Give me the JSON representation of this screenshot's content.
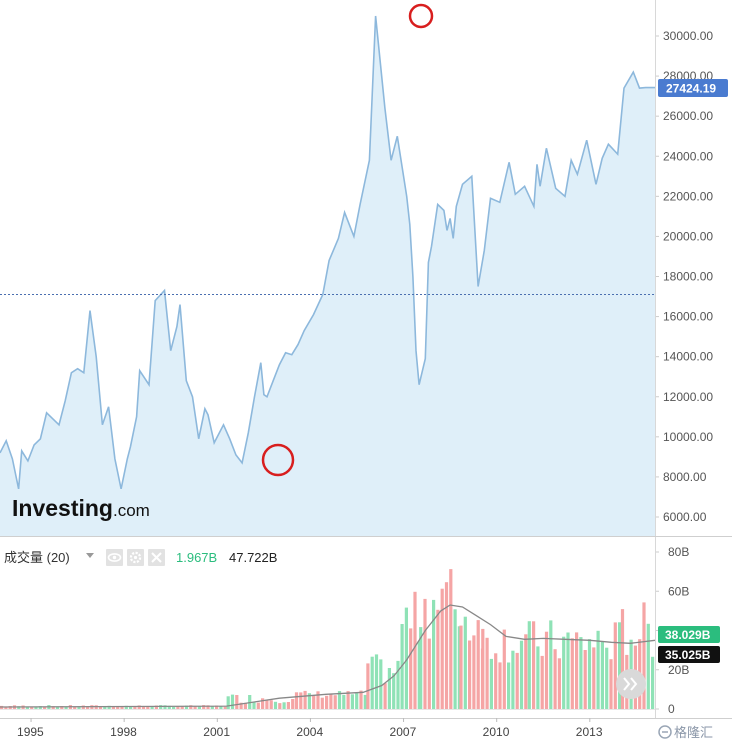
{
  "logo": {
    "brand": "Investing",
    "suffix": ".com"
  },
  "watermark": "格隆汇",
  "volume_header": {
    "indicator_label": "成交量 (20)",
    "current_volume": "1.967B",
    "average_volume": "47.722B"
  },
  "price_badge": "27424.19",
  "volume_badges": {
    "green": "38.029B",
    "black": "35.025B"
  },
  "colors": {
    "line": "#8db8dc",
    "fill": "#dfeff9",
    "up_bar": "#8fe2b6",
    "down_bar": "#f5a5a5",
    "ma_line": "#888888",
    "price_badge": "#4a7bd0",
    "vol_badge_green": "#2bbd7e",
    "vol_badge_black": "#111111",
    "circle": "#d81e1e"
  },
  "icons": [
    "dropdown-icon",
    "eye-icon",
    "gear-icon",
    "close-icon",
    "double-chevron-right-icon"
  ],
  "chart_data": [
    {
      "type": "area",
      "title": "",
      "xlabel": "",
      "ylabel": "",
      "y_tick_labels": [
        "6000.00",
        "8000.00",
        "10000.00",
        "12000.00",
        "14000.00",
        "16000.00",
        "18000.00",
        "20000.00",
        "22000.00",
        "24000.00",
        "26000.00",
        "28000.00",
        "30000.00"
      ],
      "x_tick_labels": [
        "1995",
        "1998",
        "2001",
        "2004",
        "2007",
        "2010",
        "2013"
      ],
      "ylim": [
        5000,
        32000
      ],
      "xlim": [
        1994.5,
        2015.6
      ],
      "reference_line": 17100,
      "highlighted_points": [
        "peak 2007",
        "trough 2003"
      ],
      "last_value": 27424.19,
      "series": [
        {
          "x": [
            1994.5,
            1994.7,
            1994.9,
            1995.1,
            1995.2,
            1995.4,
            1995.6,
            1995.8,
            1996.0,
            1996.2,
            1996.4,
            1996.6,
            1996.8,
            1997.0,
            1997.2,
            1997.4,
            1997.6,
            1997.8,
            1998.0,
            1998.2,
            1998.4,
            1998.6,
            1998.7,
            1998.9,
            1999.0,
            1999.3,
            1999.5,
            1999.8,
            2000.0,
            2000.2,
            2000.3,
            2000.5,
            2000.7,
            2000.9,
            2001.1,
            2001.2,
            2001.4,
            2001.7,
            2001.9,
            2002.1,
            2002.3,
            2002.5,
            2002.7,
            2002.9,
            2003.0,
            2003.1,
            2003.3,
            2003.5,
            2003.7,
            2003.9,
            2004.1,
            2004.3,
            2004.6,
            2004.9,
            2005.1,
            2005.4,
            2005.6,
            2005.9,
            2006.1,
            2006.4,
            2006.6,
            2006.9,
            2007.1,
            2007.3,
            2007.6,
            2007.7,
            2007.8,
            2007.9,
            2008.0,
            2008.2,
            2008.3,
            2008.4,
            2008.6,
            2008.8,
            2008.9,
            2009.0,
            2009.1,
            2009.2,
            2009.4,
            2009.7,
            2009.9,
            2010.1,
            2010.3,
            2010.6,
            2010.9,
            2011.1,
            2011.4,
            2011.7,
            2011.8,
            2011.9,
            2012.1,
            2012.4,
            2012.7,
            2012.9,
            2013.1,
            2013.4,
            2013.7,
            2013.9,
            2014.1,
            2014.4,
            2014.6,
            2014.9,
            2015.1,
            2015.3,
            2015.5,
            2015.6
          ],
          "values": [
            9200,
            9800,
            8900,
            7400,
            9300,
            8800,
            9600,
            9900,
            11200,
            10900,
            10600,
            11800,
            13200,
            13400,
            13200,
            16300,
            14000,
            10600,
            11500,
            8900,
            7400,
            8900,
            9500,
            11000,
            13300,
            12600,
            16800,
            17300,
            14300,
            15500,
            16600,
            12800,
            12000,
            9900,
            11400,
            11100,
            9700,
            10600,
            9900,
            9100,
            8700,
            10200,
            12000,
            13700,
            12100,
            12000,
            12800,
            13600,
            14200,
            14100,
            14600,
            15300,
            16100,
            17100,
            18800,
            19900,
            21200,
            20000,
            21600,
            23800,
            31000,
            26400,
            23800,
            25000,
            22000,
            20600,
            18000,
            14300,
            12600,
            13900,
            18700,
            19500,
            21600,
            21300,
            20300,
            20900,
            19900,
            21500,
            22600,
            23000,
            17500,
            19300,
            21900,
            21700,
            23700,
            22100,
            22500,
            21500,
            23600,
            22500,
            24400,
            22400,
            22000,
            23800,
            23100,
            24800,
            22600,
            23900,
            24600,
            24100,
            27400,
            28200,
            27400,
            27424.19,
            27424.19,
            27424.19
          ]
        }
      ]
    },
    {
      "type": "bar",
      "title": "成交量 (20)",
      "xlabel": "",
      "ylabel": "",
      "y_tick_labels": [
        "0",
        "20B",
        "40B",
        "60B",
        "80B"
      ],
      "ylim": [
        0,
        82
      ],
      "xlim": [
        1994.5,
        2015.6
      ],
      "bar_groups": [
        {
          "x_start": 1994.5,
          "x_end": 2001.8,
          "avg": 1.5,
          "spread": 0.5
        },
        {
          "x_start": 2001.8,
          "x_end": 2004.0,
          "avg": 5.5,
          "spread": 2.5
        },
        {
          "x_start": 2004.0,
          "x_end": 2006.3,
          "avg": 7.5,
          "spread": 2.0
        },
        {
          "x_start": 2006.3,
          "x_end": 2007.4,
          "avg": 20.0,
          "spread": 8.0
        },
        {
          "x_start": 2007.4,
          "x_end": 2008.0,
          "avg": 45.0,
          "spread": 15.0
        },
        {
          "x_start": 2008.0,
          "x_end": 2009.3,
          "avg": 55.0,
          "spread": 20.0
        },
        {
          "x_start": 2009.3,
          "x_end": 2010.0,
          "avg": 45.0,
          "spread": 15.0
        },
        {
          "x_start": 2010.0,
          "x_end": 2011.5,
          "avg": 35.0,
          "spread": 12.0
        },
        {
          "x_start": 2011.5,
          "x_end": 2014.5,
          "avg": 34.0,
          "spread": 12.0
        },
        {
          "x_start": 2014.5,
          "x_end": 2015.6,
          "avg": 40.0,
          "spread": 15.0
        }
      ],
      "moving_average": {
        "x": [
          1994.5,
          2001.8,
          2003.5,
          2005.0,
          2006.2,
          2006.8,
          2007.2,
          2007.6,
          2008.2,
          2008.7,
          2009.0,
          2009.4,
          2009.8,
          2010.3,
          2010.8,
          2011.4,
          2012.0,
          2012.7,
          2013.5,
          2014.2,
          2014.8,
          2015.6
        ],
        "values": [
          1,
          1.5,
          5.5,
          7.5,
          8.5,
          12,
          17,
          25,
          40,
          50,
          53,
          52,
          48,
          43,
          37,
          35.5,
          36,
          35.5,
          35,
          34,
          33.5,
          35.025
        ]
      },
      "last_values": {
        "green": 38.029,
        "black": 35.025
      }
    }
  ]
}
